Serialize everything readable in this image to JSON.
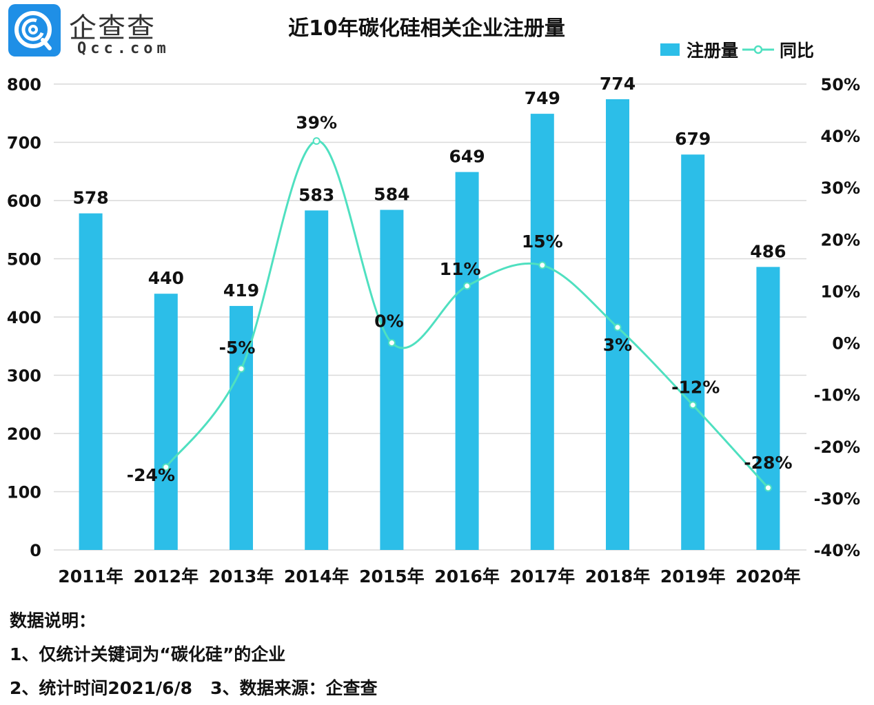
{
  "header": {
    "logo_cn": "企查查",
    "logo_en": "Qcc.com",
    "title": "近10年碳化硅相关企业注册量"
  },
  "legend": {
    "bar_label": "注册量",
    "line_label": "同比"
  },
  "colors": {
    "bar": "#2cbee8",
    "line": "#4fe0c0",
    "grid": "#d9d9d9",
    "logo": "#1f8fe6"
  },
  "chart_data": {
    "type": "bar",
    "title": "近10年碳化硅相关企业注册量",
    "categories": [
      "2011年",
      "2012年",
      "2013年",
      "2014年",
      "2015年",
      "2016年",
      "2017年",
      "2018年",
      "2019年",
      "2020年"
    ],
    "series": [
      {
        "name": "注册量",
        "type": "bar",
        "axis": "left",
        "values": [
          578,
          440,
          419,
          583,
          584,
          649,
          749,
          774,
          679,
          486
        ],
        "labels": [
          "578",
          "440",
          "419",
          "583",
          "584",
          "649",
          "749",
          "774",
          "679",
          "486"
        ]
      },
      {
        "name": "同比",
        "type": "line",
        "axis": "right",
        "smooth": true,
        "values": [
          null,
          -24,
          -5,
          39,
          0,
          11,
          15,
          3,
          -12,
          -28
        ],
        "labels": [
          "",
          "-24%",
          "-5%",
          "39%",
          "0%",
          "11%",
          "15%",
          "3%",
          "-12%",
          "-28%"
        ]
      }
    ],
    "y_left": {
      "range": [
        0,
        800
      ],
      "ticks": [
        "0",
        "100",
        "200",
        "300",
        "400",
        "500",
        "600",
        "700",
        "800"
      ]
    },
    "y_right": {
      "range": [
        -40,
        50
      ],
      "ticks": [
        "-40%",
        "-30%",
        "-20%",
        "-10%",
        "0%",
        "10%",
        "20%",
        "30%",
        "40%",
        "50%"
      ]
    },
    "grid": true,
    "legend_position": "top-right"
  },
  "notes": {
    "heading": "数据说明：",
    "line1": "1、仅统计关键词为“碳化硅”的企业",
    "line2": "2、统计时间2021/6/8   3、数据来源：企查查"
  }
}
